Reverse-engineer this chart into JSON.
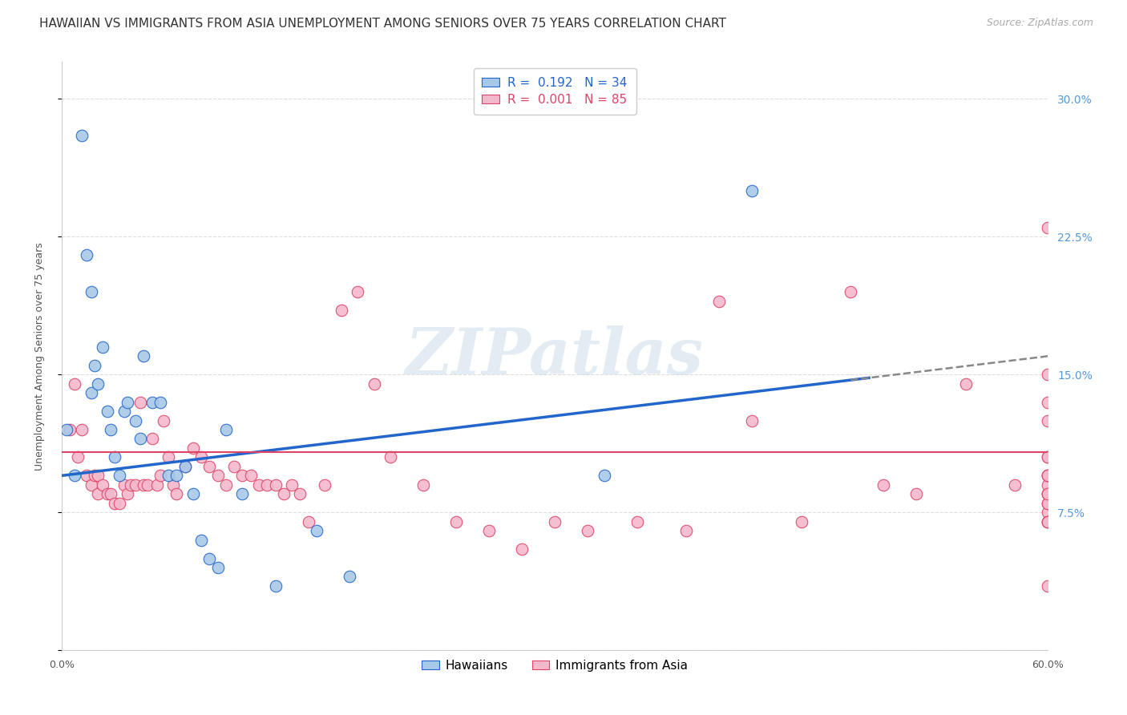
{
  "title": "HAWAIIAN VS IMMIGRANTS FROM ASIA UNEMPLOYMENT AMONG SENIORS OVER 75 YEARS CORRELATION CHART",
  "source": "Source: ZipAtlas.com",
  "ylabel": "Unemployment Among Seniors over 75 years",
  "xmin": 0.0,
  "xmax": 0.6,
  "ymin": 0.0,
  "ymax": 0.32,
  "yticks": [
    0.0,
    0.075,
    0.15,
    0.225,
    0.3
  ],
  "ytick_labels": [
    "",
    "7.5%",
    "15.0%",
    "22.5%",
    "30.0%"
  ],
  "hawaiians_R": "0.192",
  "hawaiians_N": "34",
  "immigrants_R": "0.001",
  "immigrants_N": "85",
  "legend_label1": "Hawaiians",
  "legend_label2": "Immigrants from Asia",
  "color_hawaiians": "#a8c8e8",
  "color_immigrants": "#f4b8cc",
  "trendline_hawaiians": "#2266cc",
  "trendline_immigrants": "#dd4466",
  "background_color": "#ffffff",
  "grid_color": "#dddddd",
  "hawaiians_x": [
    0.003,
    0.008,
    0.012,
    0.015,
    0.018,
    0.018,
    0.02,
    0.022,
    0.025,
    0.028,
    0.03,
    0.032,
    0.035,
    0.038,
    0.04,
    0.045,
    0.048,
    0.05,
    0.055,
    0.06,
    0.065,
    0.07,
    0.075,
    0.08,
    0.085,
    0.09,
    0.095,
    0.1,
    0.11,
    0.13,
    0.155,
    0.175,
    0.33,
    0.42
  ],
  "hawaiians_y": [
    0.12,
    0.095,
    0.28,
    0.215,
    0.195,
    0.14,
    0.155,
    0.145,
    0.165,
    0.13,
    0.12,
    0.105,
    0.095,
    0.13,
    0.135,
    0.125,
    0.115,
    0.16,
    0.135,
    0.135,
    0.095,
    0.095,
    0.1,
    0.085,
    0.06,
    0.05,
    0.045,
    0.12,
    0.085,
    0.035,
    0.065,
    0.04,
    0.095,
    0.25
  ],
  "immigrants_x": [
    0.005,
    0.008,
    0.01,
    0.012,
    0.015,
    0.018,
    0.02,
    0.022,
    0.022,
    0.025,
    0.028,
    0.03,
    0.032,
    0.035,
    0.038,
    0.04,
    0.042,
    0.045,
    0.048,
    0.05,
    0.052,
    0.055,
    0.058,
    0.06,
    0.062,
    0.065,
    0.068,
    0.07,
    0.075,
    0.08,
    0.085,
    0.09,
    0.095,
    0.1,
    0.105,
    0.11,
    0.115,
    0.12,
    0.125,
    0.13,
    0.135,
    0.14,
    0.145,
    0.15,
    0.16,
    0.17,
    0.18,
    0.19,
    0.2,
    0.22,
    0.24,
    0.26,
    0.28,
    0.3,
    0.32,
    0.35,
    0.38,
    0.4,
    0.42,
    0.45,
    0.48,
    0.5,
    0.52,
    0.55,
    0.58,
    0.6,
    0.6,
    0.6,
    0.6,
    0.6,
    0.6,
    0.6,
    0.6,
    0.6,
    0.6,
    0.6,
    0.6,
    0.6,
    0.6,
    0.6,
    0.6,
    0.6,
    0.6,
    0.6,
    0.6
  ],
  "immigrants_y": [
    0.12,
    0.145,
    0.105,
    0.12,
    0.095,
    0.09,
    0.095,
    0.085,
    0.095,
    0.09,
    0.085,
    0.085,
    0.08,
    0.08,
    0.09,
    0.085,
    0.09,
    0.09,
    0.135,
    0.09,
    0.09,
    0.115,
    0.09,
    0.095,
    0.125,
    0.105,
    0.09,
    0.085,
    0.1,
    0.11,
    0.105,
    0.1,
    0.095,
    0.09,
    0.1,
    0.095,
    0.095,
    0.09,
    0.09,
    0.09,
    0.085,
    0.09,
    0.085,
    0.07,
    0.09,
    0.185,
    0.195,
    0.145,
    0.105,
    0.09,
    0.07,
    0.065,
    0.055,
    0.07,
    0.065,
    0.07,
    0.065,
    0.19,
    0.125,
    0.07,
    0.195,
    0.09,
    0.085,
    0.145,
    0.09,
    0.23,
    0.135,
    0.125,
    0.105,
    0.085,
    0.07,
    0.075,
    0.07,
    0.07,
    0.085,
    0.105,
    0.09,
    0.095,
    0.08,
    0.15,
    0.095,
    0.08,
    0.035,
    0.085,
    0.095
  ],
  "watermark_text": "ZIPatlas",
  "title_fontsize": 11,
  "label_fontsize": 9,
  "tick_fontsize": 9,
  "legend_fontsize": 10,
  "source_fontsize": 9
}
